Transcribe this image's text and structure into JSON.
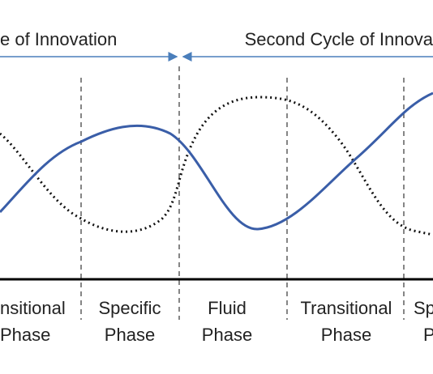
{
  "cycles": [
    "e of Innovation",
    "Second Cycle of Innova"
  ],
  "phases": [
    {
      "line1": "nsitional",
      "line2": "Phase"
    },
    {
      "line1": "Specific",
      "line2": "Phase"
    },
    {
      "line1": "Fluid",
      "line2": "Phase"
    },
    {
      "line1": "Transitional",
      "line2": "Phase"
    },
    {
      "line1": "Sp",
      "line2": "P"
    }
  ]
}
